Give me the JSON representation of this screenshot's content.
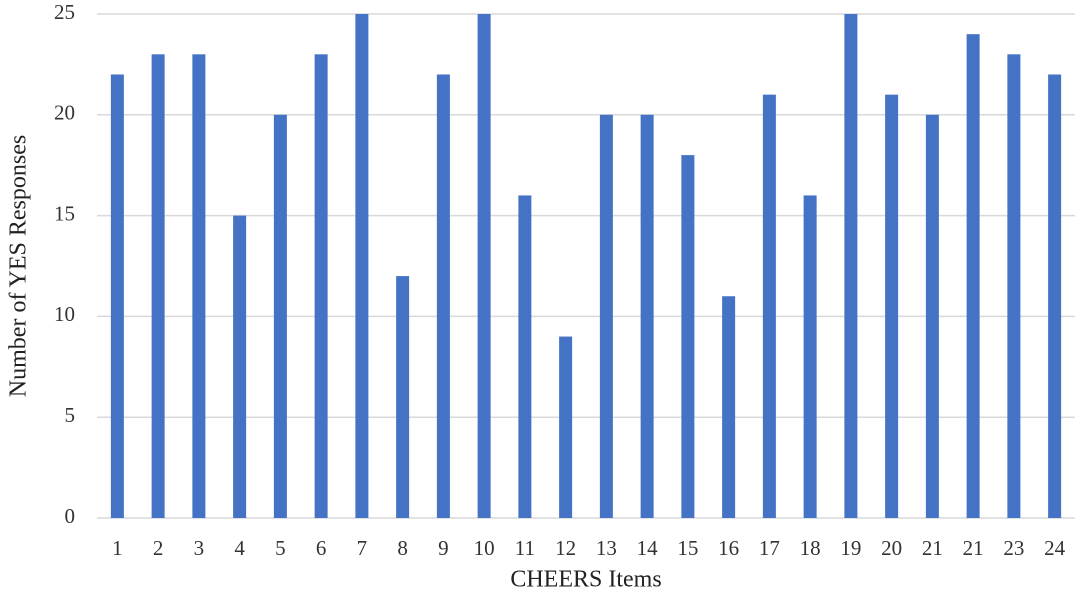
{
  "chart_data": {
    "type": "bar",
    "x_label": "CHEERS Items",
    "y_label": "Number of  YES  Responses",
    "categories": [
      "1",
      "2",
      "3",
      "4",
      "5",
      "6",
      "7",
      "8",
      "9",
      "10",
      "11",
      "12",
      "13",
      "14",
      "15",
      "16",
      "17",
      "18",
      "19",
      "20",
      "21",
      "21",
      "23",
      "24"
    ],
    "values": [
      22,
      23,
      23,
      15,
      20,
      23,
      25,
      12,
      22,
      25,
      16,
      9,
      20,
      20,
      18,
      11,
      21,
      16,
      25,
      21,
      20,
      24,
      23,
      22
    ],
    "color": "#4472c4",
    "ylim": [
      0,
      25
    ],
    "yticks": [
      0,
      5,
      10,
      15,
      20,
      25
    ],
    "grid": true
  }
}
